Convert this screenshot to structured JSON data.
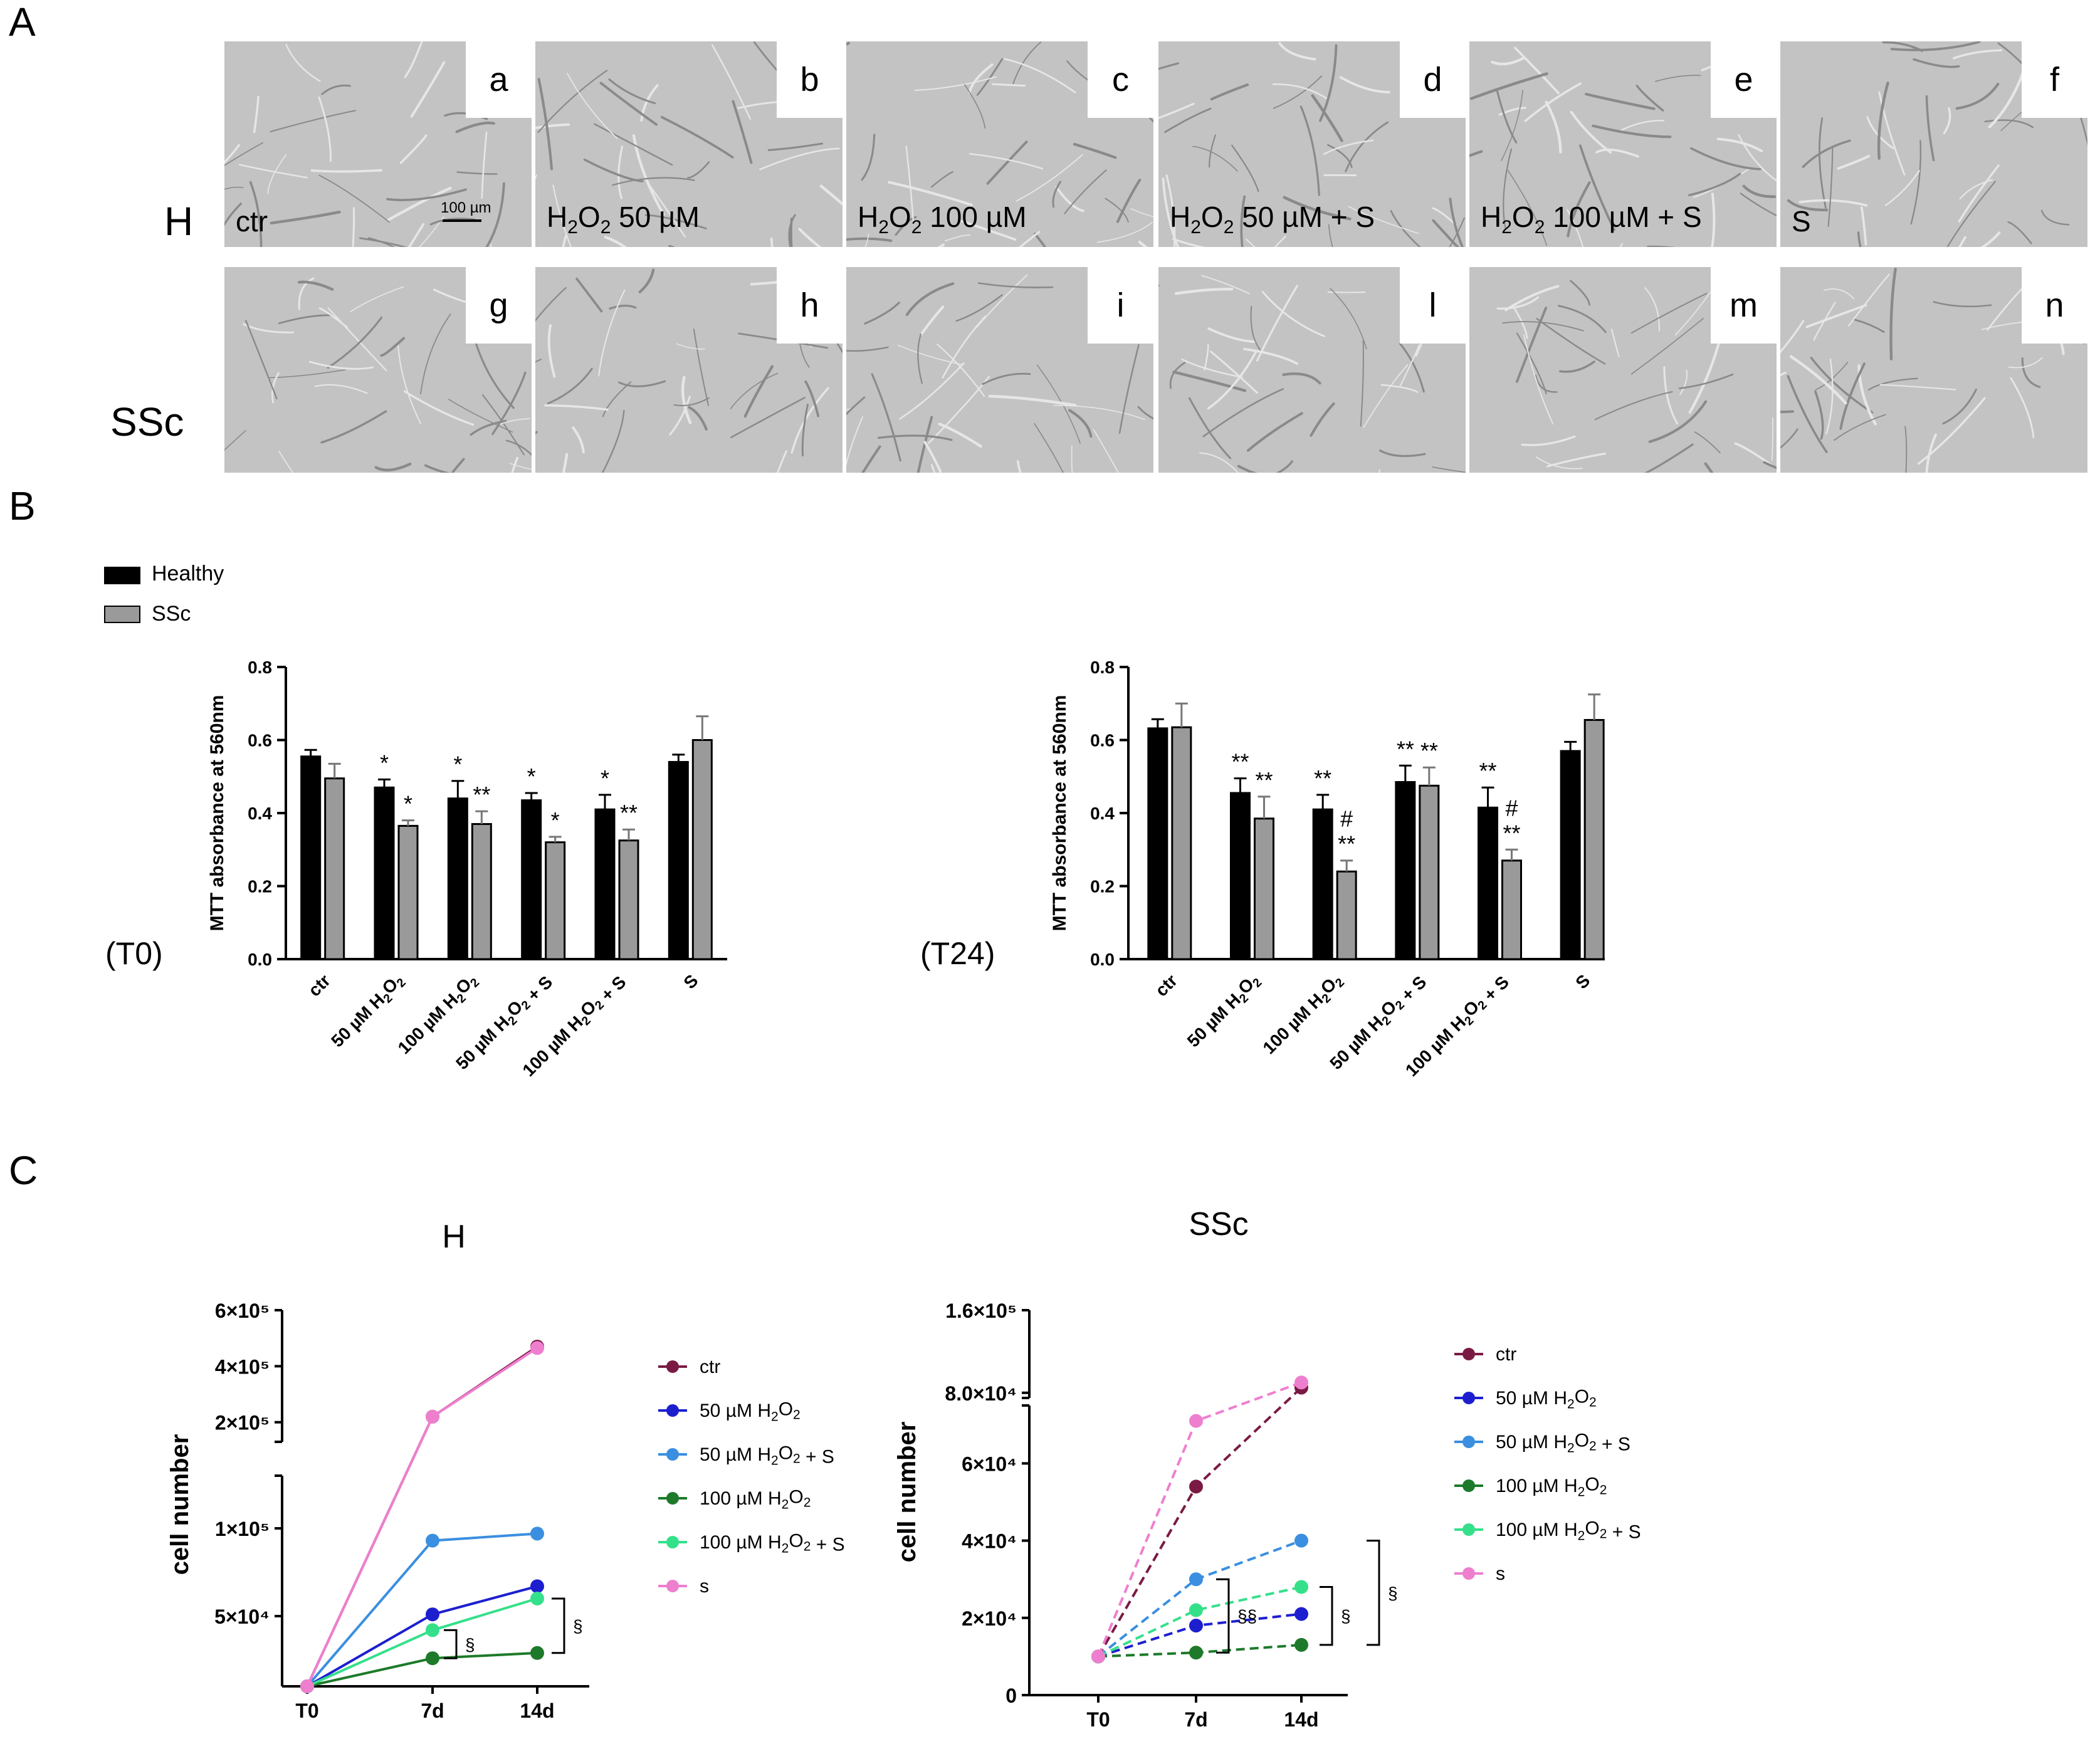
{
  "panels": {
    "A": "A",
    "B": "B",
    "C": "C"
  },
  "panel_a": {
    "row_labels": [
      "H",
      "SSc"
    ],
    "scale_bar": "100 µm",
    "images": [
      {
        "letter": "a",
        "label": "ctr"
      },
      {
        "letter": "b",
        "label": "H2O2 50 µM"
      },
      {
        "letter": "c",
        "label": "H2O2 100 µM"
      },
      {
        "letter": "d",
        "label": "H2O2 50 µM + S"
      },
      {
        "letter": "e",
        "label": "H2O2 100 µM + S"
      },
      {
        "letter": "f",
        "label": "S"
      },
      {
        "letter": "g",
        "label": ""
      },
      {
        "letter": "h",
        "label": ""
      },
      {
        "letter": "i",
        "label": ""
      },
      {
        "letter": "l",
        "label": ""
      },
      {
        "letter": "m",
        "label": ""
      },
      {
        "letter": "n",
        "label": ""
      }
    ]
  },
  "colors": {
    "healthy": "#000000",
    "ssc": "#9a9a9a",
    "ctr": "#7a1a44",
    "h2o2_50": "#1d1fcf",
    "h2o2_50_s": "#3a8fe0",
    "h2o2_100": "#1d7a2a",
    "h2o2_100_s": "#35e08a",
    "s": "#ee7fcf"
  },
  "chart_data": [
    {
      "type": "bar",
      "label": "(T0)",
      "legend": [
        "Healthy",
        "SSc"
      ],
      "ylabel": "MTT absorbance at 560nm",
      "ylim": [
        0,
        0.8
      ],
      "yticks": [
        "0.0",
        "0.2",
        "0.4",
        "0.6",
        "0.8"
      ],
      "categories": [
        "ctr",
        "50 µM H2O2",
        "100 µM H2O2",
        "50 µM H2O2 + S",
        "100 µM H2O2 + S",
        "S"
      ],
      "series": [
        {
          "name": "Healthy",
          "values": [
            0.555,
            0.47,
            0.44,
            0.435,
            0.41,
            0.54
          ],
          "errors": [
            0.018,
            0.022,
            0.048,
            0.02,
            0.04,
            0.02
          ],
          "annotations": [
            "",
            "*",
            "*",
            "*",
            "*",
            ""
          ]
        },
        {
          "name": "SSc",
          "values": [
            0.495,
            0.365,
            0.37,
            0.32,
            0.325,
            0.6
          ],
          "errors": [
            0.04,
            0.015,
            0.035,
            0.015,
            0.03,
            0.065
          ],
          "annotations": [
            "",
            "*",
            "**",
            "*",
            "**",
            ""
          ]
        }
      ]
    },
    {
      "type": "bar",
      "label": "(T24)",
      "ylabel": "MTT absorbance at 560nm",
      "ylim": [
        0,
        0.8
      ],
      "yticks": [
        "0.0",
        "0.2",
        "0.4",
        "0.6",
        "0.8"
      ],
      "categories": [
        "ctr",
        "50 µM H2O2",
        "100 µM H2O2",
        "50 µM H2O2 + S",
        "100 µM H2O2 + S",
        "S"
      ],
      "series": [
        {
          "name": "Healthy",
          "values": [
            0.632,
            0.455,
            0.41,
            0.485,
            0.415,
            0.57
          ],
          "errors": [
            0.025,
            0.04,
            0.04,
            0.045,
            0.055,
            0.025
          ],
          "annotations": [
            "",
            "**",
            "**",
            "**",
            "**",
            ""
          ]
        },
        {
          "name": "SSc",
          "values": [
            0.635,
            0.385,
            0.24,
            0.475,
            0.27,
            0.655
          ],
          "errors": [
            0.065,
            0.06,
            0.03,
            0.05,
            0.03,
            0.07
          ],
          "annotations": [
            "",
            "**",
            "#\n**",
            "**",
            "#\n**",
            ""
          ]
        }
      ]
    },
    {
      "type": "line",
      "title": "H",
      "ylabel": "cell number",
      "x": [
        "T0",
        "7d",
        "14d"
      ],
      "axis_break": true,
      "lower_yticks": [
        "5×10⁴",
        "1×10⁵"
      ],
      "upper_yticks": [
        "2×10⁵",
        "4×10⁵",
        "6×10⁵"
      ],
      "series": [
        {
          "name": "ctr",
          "values": [
            10000,
            220000,
            470000
          ]
        },
        {
          "name": "50 µM H2O2",
          "values": [
            10000,
            51000,
            67000
          ]
        },
        {
          "name": "50 µM H2O2 + S",
          "values": [
            10000,
            93000,
            97000
          ]
        },
        {
          "name": "100 µM H2O2",
          "values": [
            10000,
            26000,
            29000
          ]
        },
        {
          "name": "100 µM H2O2 + S",
          "values": [
            10000,
            42000,
            60000
          ]
        },
        {
          "name": "s",
          "values": [
            10000,
            220000,
            465000
          ]
        }
      ],
      "significance": [
        "§",
        "§"
      ]
    },
    {
      "type": "line",
      "title": "SSc",
      "ylabel": "cell number",
      "x": [
        "T0",
        "7d",
        "14d"
      ],
      "axis_break": true,
      "lower_yticks": [
        "0",
        "2×10⁴",
        "4×10⁴",
        "6×10⁴"
      ],
      "upper_yticks": [
        "8.0×10⁴",
        "1.6×10⁵"
      ],
      "series": [
        {
          "name": "ctr",
          "values": [
            10000,
            54000,
            85000
          ]
        },
        {
          "name": "50 µM H2O2",
          "values": [
            10000,
            18000,
            21000
          ]
        },
        {
          "name": "50 µM H2O2 + S",
          "values": [
            10000,
            30000,
            40000
          ]
        },
        {
          "name": "100 µM H2O2",
          "values": [
            10000,
            11000,
            13000
          ]
        },
        {
          "name": "100 µM H2O2 + S",
          "values": [
            10000,
            22000,
            28000
          ]
        },
        {
          "name": "s",
          "values": [
            10000,
            71000,
            90000
          ]
        }
      ],
      "significance": [
        "§§",
        "§",
        "§"
      ]
    }
  ]
}
